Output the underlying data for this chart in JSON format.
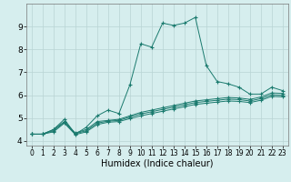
{
  "xlabel": "Humidex (Indice chaleur)",
  "xlim": [
    -0.5,
    23.5
  ],
  "ylim": [
    3.8,
    10.0
  ],
  "yticks": [
    4,
    5,
    6,
    7,
    8,
    9
  ],
  "xticks": [
    0,
    1,
    2,
    3,
    4,
    5,
    6,
    7,
    8,
    9,
    10,
    11,
    12,
    13,
    14,
    15,
    16,
    17,
    18,
    19,
    20,
    21,
    22,
    23
  ],
  "background_color": "#d6eeee",
  "grid_color": "#b8d4d4",
  "line_color": "#1a7a6e",
  "lines": [
    [
      4.3,
      4.3,
      4.5,
      4.95,
      4.3,
      4.6,
      5.1,
      5.35,
      5.2,
      6.45,
      8.25,
      8.1,
      9.15,
      9.05,
      9.15,
      9.4,
      7.3,
      6.6,
      6.5,
      6.35,
      6.05,
      6.05,
      6.35,
      6.2
    ],
    [
      4.3,
      4.3,
      4.5,
      4.85,
      4.35,
      4.5,
      4.85,
      4.9,
      4.95,
      5.1,
      5.25,
      5.35,
      5.45,
      5.55,
      5.65,
      5.75,
      5.8,
      5.85,
      5.9,
      5.88,
      5.82,
      5.92,
      6.1,
      6.08
    ],
    [
      4.3,
      4.3,
      4.45,
      4.82,
      4.32,
      4.45,
      4.78,
      4.87,
      4.9,
      5.05,
      5.18,
      5.28,
      5.38,
      5.48,
      5.58,
      5.68,
      5.73,
      5.78,
      5.83,
      5.81,
      5.75,
      5.85,
      6.02,
      6.0
    ],
    [
      4.3,
      4.3,
      4.4,
      4.78,
      4.28,
      4.4,
      4.72,
      4.82,
      4.85,
      4.98,
      5.1,
      5.2,
      5.3,
      5.4,
      5.5,
      5.6,
      5.65,
      5.7,
      5.75,
      5.73,
      5.68,
      5.78,
      5.95,
      5.93
    ]
  ]
}
